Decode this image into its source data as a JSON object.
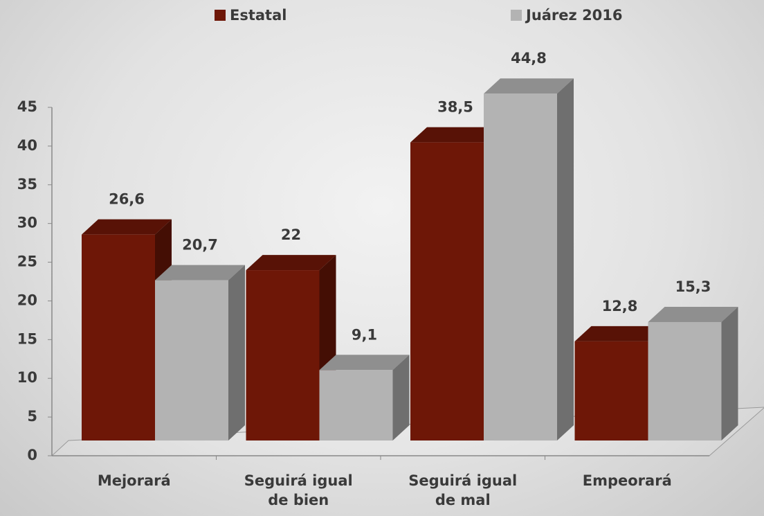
{
  "chart_data": {
    "type": "bar3d",
    "categories": [
      "Mejorará",
      "Seguirá igual de bien",
      "Seguirá igual de mal",
      "Empeorará"
    ],
    "series": [
      {
        "name": "Estatal",
        "color": "#6e1707",
        "values": [
          26.6,
          22,
          38.5,
          12.8
        ],
        "value_labels": [
          "26,6",
          "22",
          "38,5",
          "12,8"
        ]
      },
      {
        "name": "Juárez 2016",
        "color": "#b3b3b3",
        "values": [
          20.7,
          9.1,
          44.8,
          15.3
        ],
        "value_labels": [
          "20,7",
          "9,1",
          "44,8",
          "15,3"
        ]
      }
    ],
    "ylim": [
      0,
      45
    ],
    "yticks": [
      0,
      5,
      10,
      15,
      20,
      25,
      30,
      35,
      40,
      45
    ]
  }
}
